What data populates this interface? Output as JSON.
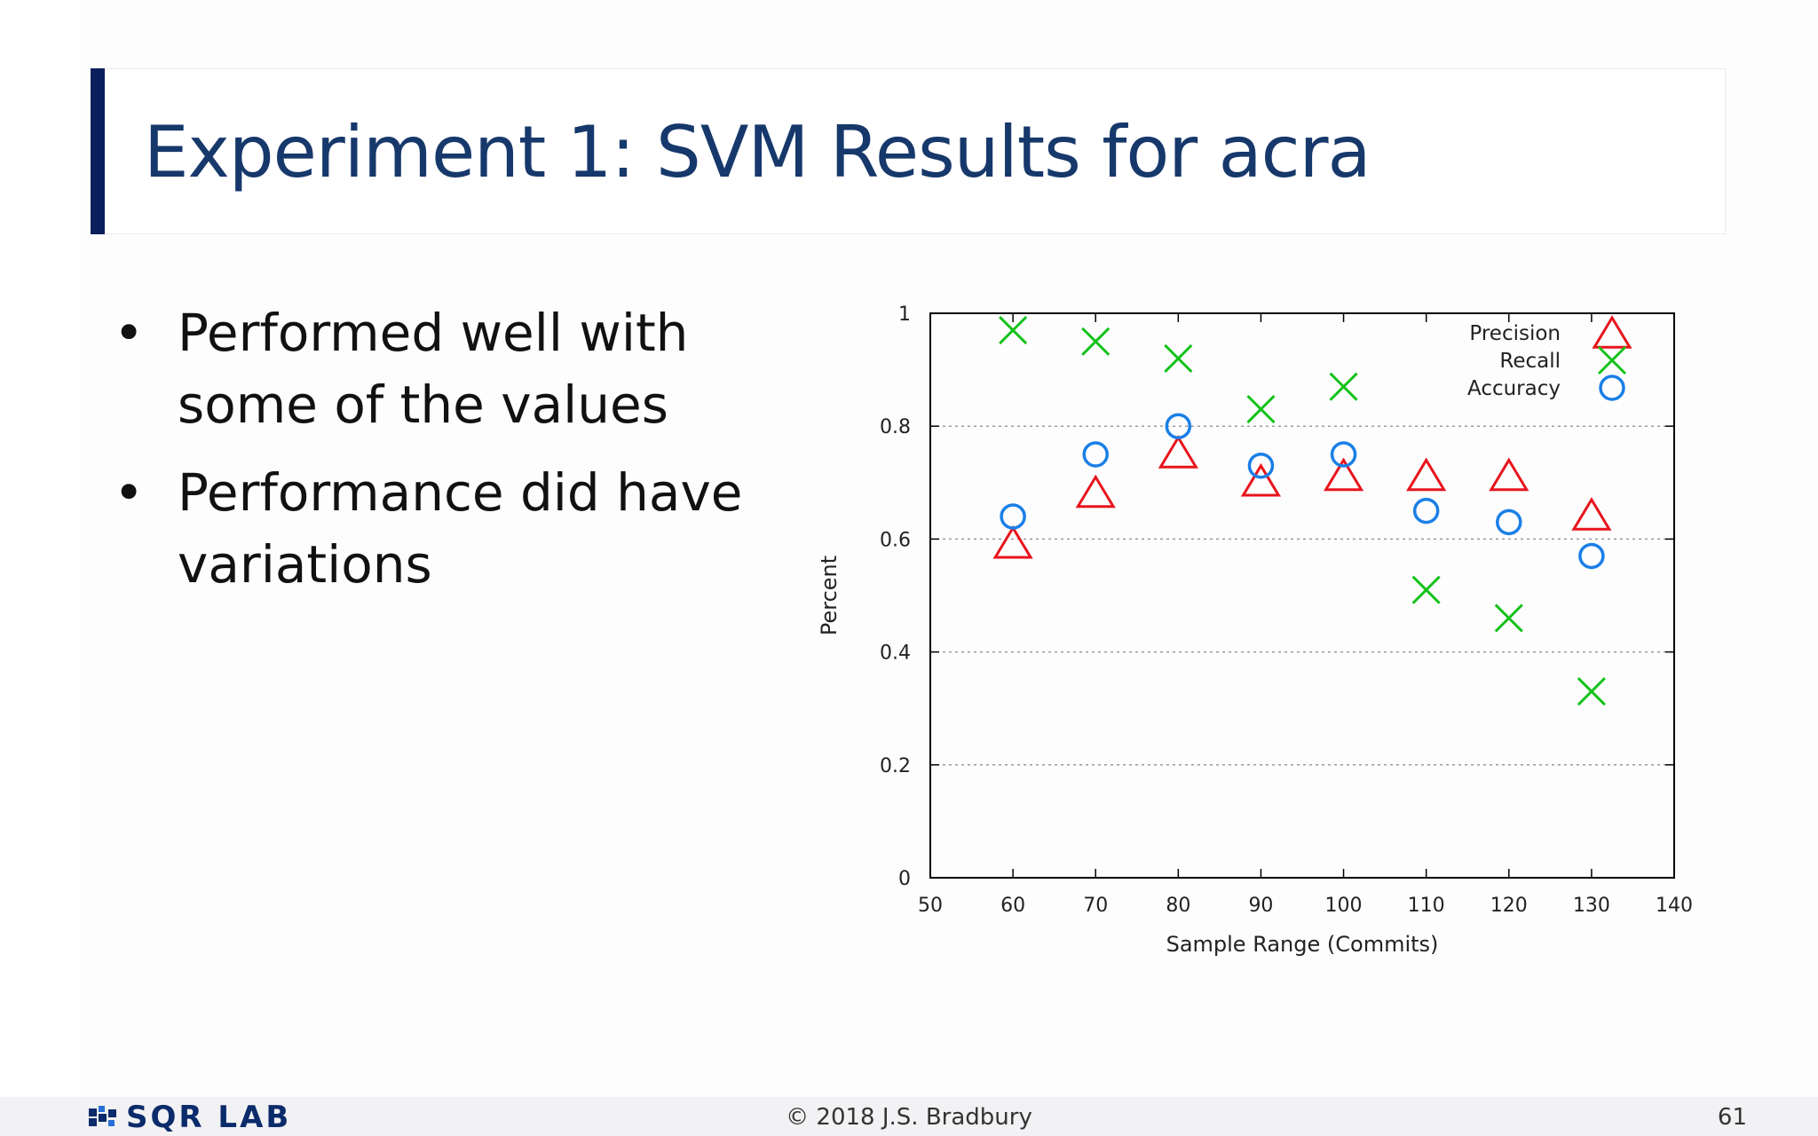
{
  "slide": {
    "title": "Experiment 1: SVM Results for acra",
    "bullets": [
      "Performed well with some of the values",
      "Performance did have variations"
    ],
    "bullet_glyph": "•"
  },
  "footer": {
    "logo_text": "SQR LAB",
    "copyright": "© 2018 J.S. Bradbury",
    "page_number": "61"
  },
  "colors": {
    "title": "#16386b",
    "accent_bar": "#0b1f5c",
    "precision": "#e8141c",
    "recall": "#14c21a",
    "accuracy": "#1a7fe6"
  },
  "chart_data": {
    "type": "scatter",
    "xlabel": "Sample Range (Commits)",
    "ylabel": "Percent",
    "xlim": [
      50,
      140
    ],
    "ylim": [
      0,
      1
    ],
    "x_ticks": [
      "50",
      "60",
      "70",
      "80",
      "90",
      "100",
      "110",
      "120",
      "130",
      "140"
    ],
    "y_ticks": [
      "0",
      "0.2",
      "0.4",
      "0.6",
      "0.8",
      "1"
    ],
    "y_tick_values": [
      0,
      0.2,
      0.4,
      0.6,
      0.8,
      1
    ],
    "x_tick_values": [
      50,
      60,
      70,
      80,
      90,
      100,
      110,
      120,
      130,
      140
    ],
    "grid": "horizontal dotted",
    "legend_position": "top-right",
    "x": [
      60,
      70,
      80,
      90,
      100,
      110,
      120,
      130
    ],
    "series": [
      {
        "name": "Precision",
        "marker": "triangle",
        "color": "#e8141c",
        "values": [
          0.59,
          0.68,
          0.75,
          0.7,
          0.71,
          0.71,
          0.71,
          0.64
        ]
      },
      {
        "name": "Recall",
        "marker": "cross",
        "color": "#14c21a",
        "values": [
          0.97,
          0.95,
          0.92,
          0.83,
          0.87,
          0.51,
          0.46,
          0.33
        ]
      },
      {
        "name": "Accuracy",
        "marker": "circle",
        "color": "#1a7fe6",
        "values": [
          0.64,
          0.75,
          0.8,
          0.73,
          0.75,
          0.65,
          0.63,
          0.57
        ]
      }
    ]
  }
}
